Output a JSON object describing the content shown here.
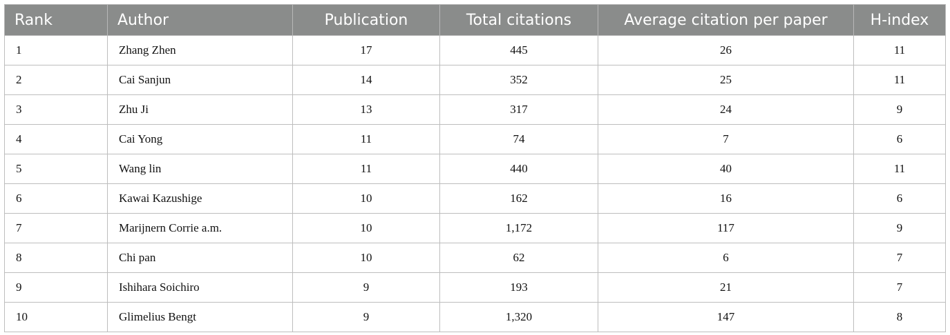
{
  "table": {
    "headers": [
      "Rank",
      "Author",
      "Publication",
      "Total citations",
      "Average citation per paper",
      "H-index"
    ],
    "rows": [
      [
        "1",
        "Zhang Zhen",
        "17",
        "445",
        "26",
        "11"
      ],
      [
        "2",
        "Cai Sanjun",
        "14",
        "352",
        "25",
        "11"
      ],
      [
        "3",
        "Zhu Ji",
        "13",
        "317",
        "24",
        "9"
      ],
      [
        "4",
        "Cai Yong",
        "11",
        "74",
        "7",
        "6"
      ],
      [
        "5",
        "Wang lin",
        "11",
        "440",
        "40",
        "11"
      ],
      [
        "6",
        "Kawai Kazushige",
        "10",
        "162",
        "16",
        "6"
      ],
      [
        "7",
        "Marijnern Corrie a.m.",
        "10",
        "1,172",
        "117",
        "9"
      ],
      [
        "8",
        "Chi pan",
        "10",
        "62",
        "6",
        "7"
      ],
      [
        "9",
        "Ishihara Soichiro",
        "9",
        "193",
        "21",
        "7"
      ],
      [
        "10",
        "Glimelius Bengt",
        "9",
        "1,320",
        "147",
        "8"
      ]
    ]
  },
  "colors": {
    "header_background": "#8a8c8b",
    "header_text": "#ffffff",
    "grid_line": "#bdbdbd"
  }
}
